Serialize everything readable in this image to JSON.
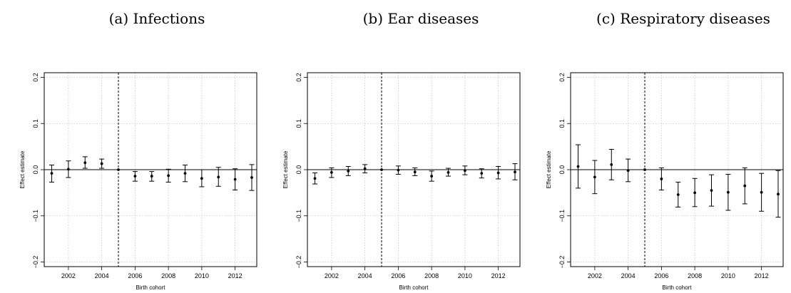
{
  "panels": [
    {
      "title": "(a) Infections"
    },
    {
      "title": "(b) Ear diseases"
    },
    {
      "title": "(c) Respiratory diseases"
    }
  ],
  "chart_data": [
    {
      "type": "scatter",
      "title": "(a) Infections",
      "xlabel": "Birth cohort",
      "ylabel": "Effect estimate",
      "xlim": [
        2000.55,
        2013.3
      ],
      "ylim": [
        -0.21,
        0.21
      ],
      "xticks": [
        2002,
        2004,
        2006,
        2008,
        2010,
        2012
      ],
      "yticks": [
        -0.2,
        -0.1,
        0.0,
        0.1,
        0.2
      ],
      "grid": true,
      "reference_line_y": 0,
      "vertical_line_x": 2005,
      "x": [
        2001,
        2002,
        2003,
        2004,
        2005,
        2006,
        2007,
        2008,
        2009,
        2010,
        2011,
        2012,
        2013
      ],
      "y": [
        -0.008,
        0.001,
        0.015,
        0.013,
        0.0,
        -0.014,
        -0.014,
        -0.013,
        -0.008,
        -0.019,
        -0.016,
        -0.021,
        -0.017
      ],
      "lower": [
        -0.027,
        -0.017,
        0.003,
        0.003,
        0.0,
        -0.025,
        -0.025,
        -0.027,
        -0.026,
        -0.037,
        -0.036,
        -0.044,
        -0.045
      ],
      "upper": [
        0.01,
        0.019,
        0.028,
        0.023,
        0.0,
        -0.004,
        -0.004,
        0.001,
        0.01,
        0.0,
        0.005,
        0.002,
        0.011
      ]
    },
    {
      "type": "scatter",
      "title": "(b) Ear diseases",
      "xlabel": "Birth cohort",
      "ylabel": "Effect estimate",
      "xlim": [
        2000.55,
        2013.3
      ],
      "ylim": [
        -0.21,
        0.21
      ],
      "xticks": [
        2002,
        2004,
        2006,
        2008,
        2010,
        2012
      ],
      "yticks": [
        -0.2,
        -0.1,
        0.0,
        0.1,
        0.2
      ],
      "grid": true,
      "reference_line_y": 0,
      "vertical_line_x": 2005,
      "x": [
        2001,
        2002,
        2003,
        2004,
        2005,
        2006,
        2007,
        2008,
        2009,
        2010,
        2011,
        2012,
        2013
      ],
      "y": [
        -0.019,
        -0.006,
        -0.003,
        0.002,
        0.0,
        -0.001,
        -0.005,
        -0.014,
        -0.006,
        -0.002,
        -0.008,
        -0.007,
        -0.005
      ],
      "lower": [
        -0.031,
        -0.017,
        -0.013,
        -0.007,
        0.0,
        -0.01,
        -0.013,
        -0.025,
        -0.014,
        -0.011,
        -0.018,
        -0.02,
        -0.022
      ],
      "upper": [
        -0.007,
        0.004,
        0.007,
        0.011,
        0.0,
        0.008,
        0.004,
        -0.003,
        0.003,
        0.008,
        0.002,
        0.007,
        0.013
      ]
    },
    {
      "type": "scatter",
      "title": "(c) Respiratory diseases",
      "xlabel": "Birth cohort",
      "ylabel": "Effect estimate",
      "xlim": [
        2000.55,
        2013.3
      ],
      "ylim": [
        -0.21,
        0.21
      ],
      "xticks": [
        2002,
        2004,
        2006,
        2008,
        2010,
        2012
      ],
      "yticks": [
        -0.2,
        -0.1,
        0.0,
        0.1,
        0.2
      ],
      "grid": true,
      "reference_line_y": 0,
      "vertical_line_x": 2005,
      "x": [
        2001,
        2002,
        2003,
        2004,
        2005,
        2006,
        2007,
        2008,
        2009,
        2010,
        2011,
        2012,
        2013
      ],
      "y": [
        0.007,
        -0.016,
        0.011,
        -0.002,
        0.0,
        -0.02,
        -0.054,
        -0.05,
        -0.045,
        -0.049,
        -0.035,
        -0.049,
        -0.053
      ],
      "lower": [
        -0.04,
        -0.052,
        -0.022,
        -0.026,
        0.0,
        -0.044,
        -0.081,
        -0.08,
        -0.079,
        -0.088,
        -0.074,
        -0.09,
        -0.103
      ],
      "upper": [
        0.054,
        0.02,
        0.044,
        0.023,
        0.0,
        0.004,
        -0.027,
        -0.019,
        -0.011,
        -0.01,
        0.004,
        -0.008,
        -0.002
      ]
    }
  ]
}
